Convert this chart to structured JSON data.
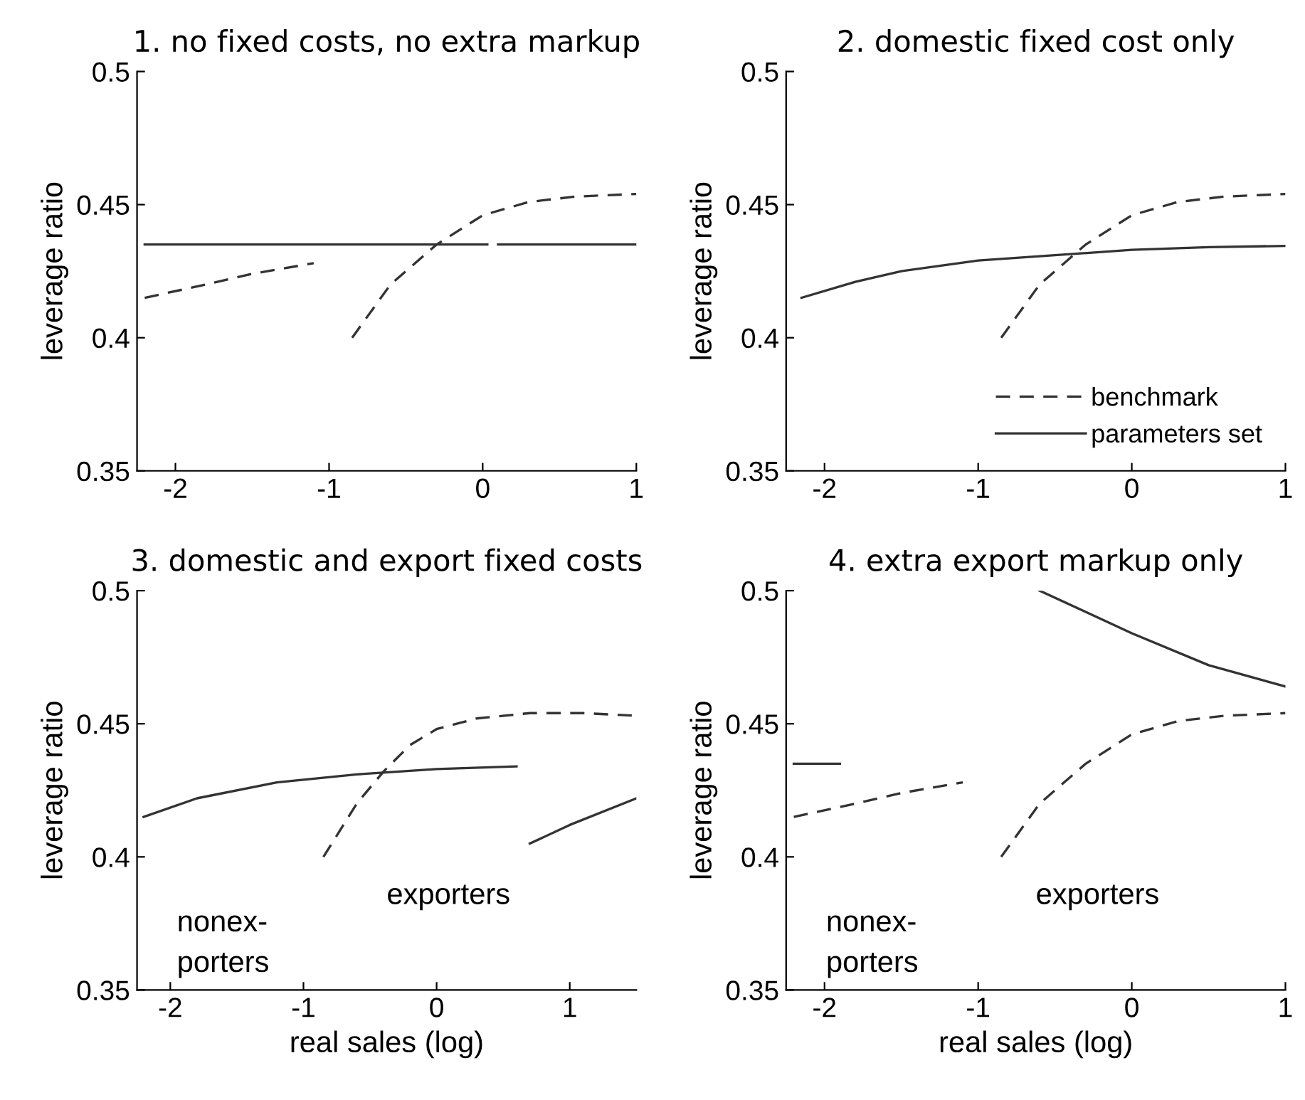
{
  "chart_data": [
    {
      "type": "line",
      "title": "1. no fixed costs, no extra markup",
      "ylabel": "leverage ratio",
      "xlim": [
        -2.25,
        1
      ],
      "xticks": [
        -2,
        -1,
        0,
        1
      ],
      "ylim": [
        0.35,
        0.5
      ],
      "yticks": [
        0.35,
        0.4,
        0.45,
        0.5
      ],
      "grid": false,
      "legend": false,
      "series": [
        {
          "color": "#333333",
          "line_style": "solid",
          "x": [
            -2.2,
            -1,
            0,
            0.03,
            0.06,
            0.1,
            0.5,
            1
          ],
          "values": [
            0.435,
            0.435,
            0.435,
            0.435,
            null,
            0.435,
            0.435,
            0.435
          ]
        },
        {
          "color": "#333333",
          "line_style": "dashed",
          "x": [
            -2.2,
            -1.8,
            -1.5,
            -1.1,
            -1,
            -0.85,
            -0.6,
            -0.3,
            0,
            0.3,
            0.6,
            1
          ],
          "values": [
            0.415,
            0.42,
            0.424,
            0.428,
            null,
            0.4,
            0.42,
            0.435,
            0.446,
            0.451,
            0.453,
            0.454
          ]
        }
      ]
    },
    {
      "type": "line",
      "title": "2. domestic fixed cost only",
      "ylabel": "leverage ratio",
      "xlim": [
        -2.25,
        1
      ],
      "xticks": [
        -2,
        -1,
        0,
        1
      ],
      "ylim": [
        0.35,
        0.5
      ],
      "yticks": [
        0.35,
        0.4,
        0.45,
        0.5
      ],
      "grid": false,
      "legend": "bottom right",
      "series": [
        {
          "name": "benchmark",
          "color": "#333333",
          "line_style": "dashed",
          "x": [
            -0.85,
            -0.6,
            -0.3,
            0,
            0.3,
            0.6,
            1
          ],
          "values": [
            0.4,
            0.42,
            0.435,
            0.446,
            0.451,
            0.453,
            0.454
          ]
        },
        {
          "name": "parameters set",
          "color": "#333333",
          "line_style": "solid",
          "x": [
            -2.15,
            -1.8,
            -1.5,
            -1,
            -0.5,
            0,
            0.5,
            1
          ],
          "values": [
            0.415,
            0.421,
            0.425,
            0.429,
            0.431,
            0.433,
            0.434,
            0.4345
          ]
        }
      ]
    },
    {
      "type": "line",
      "title": "3. domestic and export fixed costs",
      "xlabel": "real sales (log)",
      "ylabel": "leverage ratio",
      "xlim": [
        -2.25,
        1.5
      ],
      "xticks": [
        -2,
        -1,
        0,
        1
      ],
      "ylim": [
        0.35,
        0.5
      ],
      "yticks": [
        0.35,
        0.4,
        0.45,
        0.5
      ],
      "grid": false,
      "legend": false,
      "annotations": [
        "nonex-\nporters",
        "exporters"
      ],
      "series": [
        {
          "color": "#333333",
          "line_style": "solid",
          "x": [
            -2.2,
            -1.8,
            -1.2,
            -0.6,
            0,
            0.6,
            0.65,
            0.7,
            1,
            1.5
          ],
          "values": [
            0.415,
            0.422,
            0.428,
            0.431,
            0.433,
            0.434,
            null,
            0.405,
            0.412,
            0.422
          ]
        },
        {
          "color": "#333333",
          "line_style": "dashed",
          "x": [
            -0.85,
            -0.6,
            -0.4,
            -0.2,
            0,
            0.3,
            0.7,
            1.1,
            1.5
          ],
          "values": [
            0.4,
            0.42,
            0.432,
            0.442,
            0.448,
            0.452,
            0.454,
            0.454,
            0.453
          ]
        }
      ]
    },
    {
      "type": "line",
      "title": "4. extra export markup only",
      "xlabel": "real sales (log)",
      "ylabel": "leverage ratio",
      "xlim": [
        -2.25,
        1
      ],
      "xticks": [
        -2,
        -1,
        0,
        1
      ],
      "ylim": [
        0.35,
        0.5
      ],
      "yticks": [
        0.35,
        0.4,
        0.45,
        0.5
      ],
      "grid": false,
      "legend": false,
      "annotations": [
        "nonex-\nporters",
        "exporters"
      ],
      "series": [
        {
          "color": "#333333",
          "line_style": "solid",
          "x": [
            -2.2,
            -1.9,
            -1,
            -0.6,
            -0.3,
            0,
            0.5,
            1
          ],
          "values": [
            0.435,
            0.435,
            null,
            0.5,
            0.492,
            0.484,
            0.472,
            0.464
          ]
        },
        {
          "color": "#333333",
          "line_style": "dashed",
          "x": [
            -2.2,
            -1.8,
            -1.5,
            -1.1,
            -1,
            -0.85,
            -0.6,
            -0.3,
            0,
            0.3,
            0.6,
            1
          ],
          "values": [
            0.415,
            0.42,
            0.424,
            0.428,
            null,
            0.4,
            0.42,
            0.435,
            0.446,
            0.451,
            0.453,
            0.454
          ]
        }
      ]
    }
  ]
}
